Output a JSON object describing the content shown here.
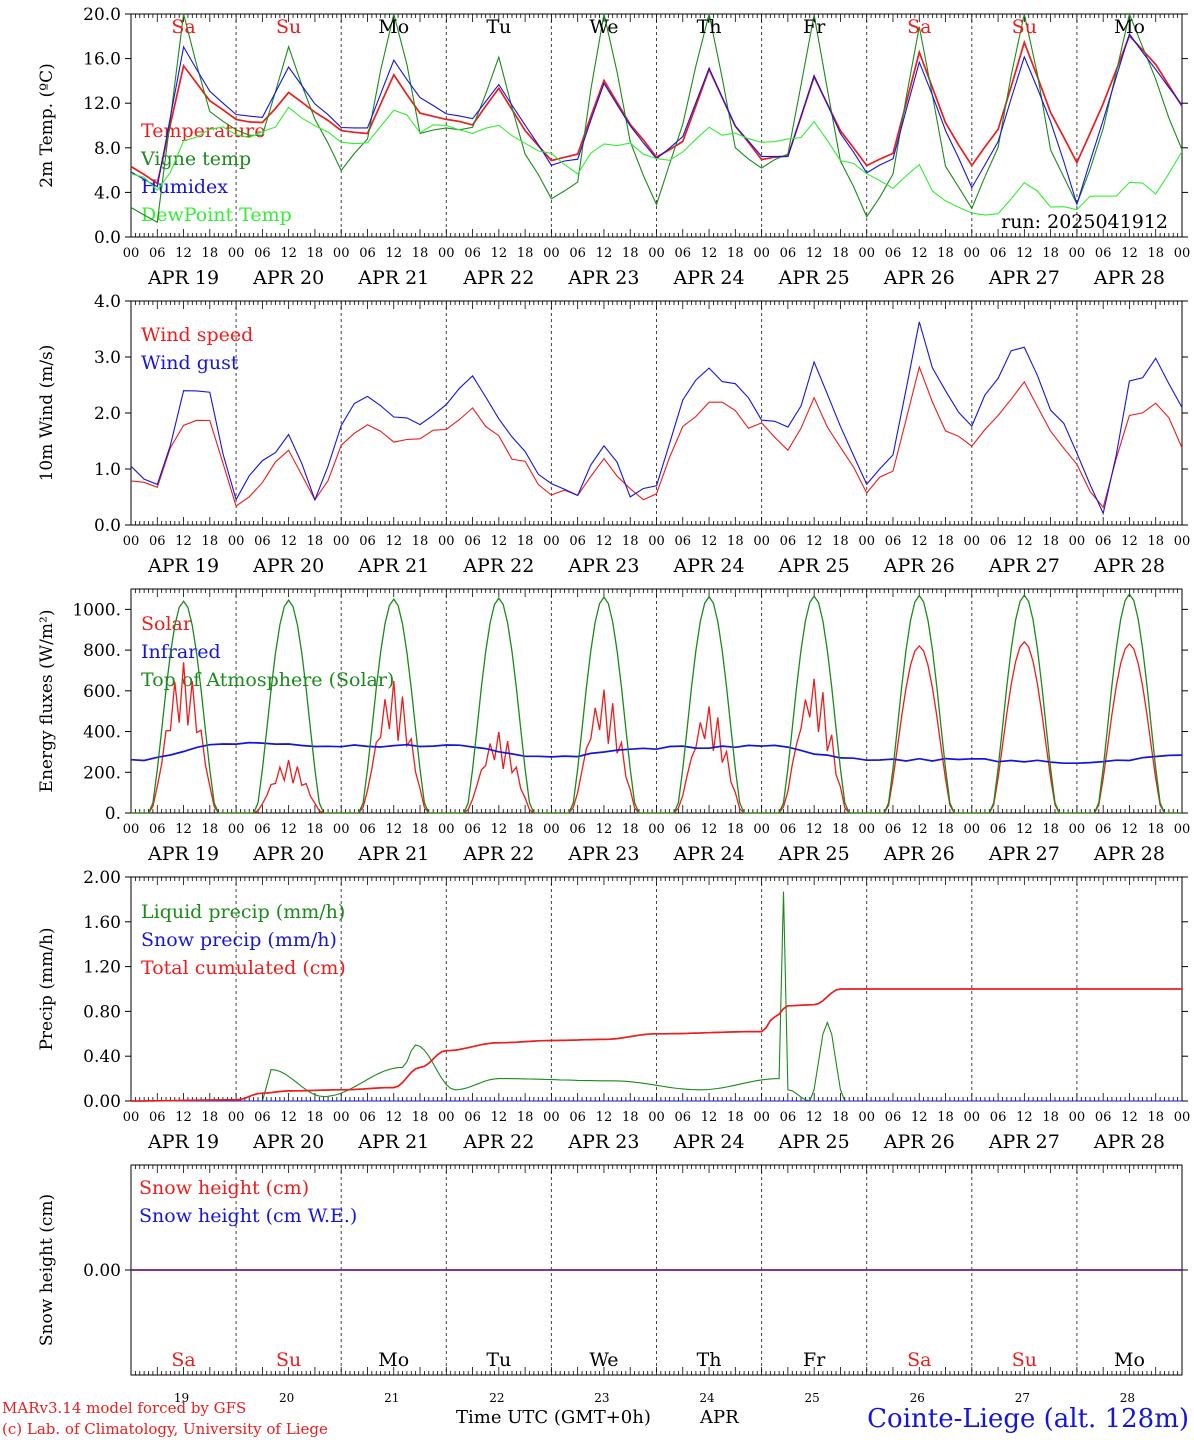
{
  "run_label": "run: 2025041912",
  "footer": {
    "model": "MARv3.14 model forced by GFS",
    "credit": "(c) Lab. of Climatology, University of Liege",
    "xaxis": "Time UTC (GMT+0h)",
    "month": "APR",
    "station": "Cointe-Liege (alt. 128m)"
  },
  "days": [
    {
      "date": "APR 19",
      "num": "19",
      "dow": "Sa",
      "weekend": true
    },
    {
      "date": "APR 20",
      "num": "20",
      "dow": "Su",
      "weekend": true
    },
    {
      "date": "APR 21",
      "num": "21",
      "dow": "Mo",
      "weekend": false
    },
    {
      "date": "APR 22",
      "num": "22",
      "dow": "Tu",
      "weekend": false
    },
    {
      "date": "APR 23",
      "num": "23",
      "dow": "We",
      "weekend": false
    },
    {
      "date": "APR 24",
      "num": "24",
      "dow": "Th",
      "weekend": false
    },
    {
      "date": "APR 25",
      "num": "25",
      "dow": "Fr",
      "weekend": false
    },
    {
      "date": "APR 26",
      "num": "26",
      "dow": "Sa",
      "weekend": true
    },
    {
      "date": "APR 27",
      "num": "27",
      "dow": "Su",
      "weekend": true
    },
    {
      "date": "APR 28",
      "num": "28",
      "dow": "Mo",
      "weekend": false
    }
  ],
  "hour_ticks": [
    "00",
    "06",
    "12",
    "18"
  ],
  "end_tick": "00",
  "colors": {
    "red": "#ee1c1c",
    "green": "#1a8a1a",
    "blue": "#1414e0",
    "lightgreen": "#33ee33",
    "weekend": "#ee1c1c"
  },
  "chart_data": [
    {
      "type": "line",
      "ylabel": "2m Temp. (ºC)",
      "ylim": [
        0,
        20
      ],
      "yticks": [
        "0.0",
        "4.0",
        "8.0",
        "12.0",
        "16.0",
        "20.0"
      ],
      "series": [
        {
          "name": "Temperature",
          "color": "red",
          "x": [
            0,
            6,
            12,
            18,
            24,
            30,
            36,
            42,
            48,
            54,
            60,
            66,
            72,
            78,
            84,
            90,
            96,
            102,
            108,
            114,
            120,
            126,
            132,
            138,
            144,
            150,
            156,
            162,
            168,
            174,
            180,
            186,
            192,
            198,
            204,
            210,
            216,
            222,
            228,
            234,
            240
          ],
          "values": [
            6.4,
            4.8,
            15.4,
            12.2,
            10.6,
            10.2,
            12.9,
            11.2,
            9.6,
            9.3,
            14.6,
            11.1,
            10.6,
            10.1,
            13.4,
            9.5,
            6.8,
            7.5,
            14.0,
            10.1,
            7.2,
            8.6,
            15.0,
            9.9,
            7.0,
            7.2,
            14.3,
            9.6,
            6.4,
            7.5,
            16.5,
            10.2,
            6.4,
            9.7,
            17.4,
            11.2,
            6.6,
            12.0,
            18.0,
            15.5,
            11.7
          ]
        },
        {
          "name": "Vigne temp",
          "color": "green",
          "x": [
            0,
            6,
            12,
            18,
            24,
            30,
            36,
            42,
            48,
            54,
            60,
            66,
            72,
            78,
            84,
            90,
            96,
            102,
            108,
            114,
            120,
            126,
            132,
            138,
            144,
            150,
            156,
            162,
            168,
            174,
            180,
            186,
            192,
            198,
            204,
            210,
            216,
            222,
            228,
            234,
            240
          ],
          "values": [
            2.8,
            1.2,
            20.0,
            11.0,
            9.4,
            9.2,
            17.0,
            10.5,
            6.0,
            9.0,
            21.0,
            9.5,
            9.8,
            9.6,
            16.0,
            7.6,
            3.5,
            5.0,
            21.0,
            8.5,
            3.0,
            10.0,
            21.0,
            8.0,
            6.4,
            7.5,
            20.0,
            7.0,
            2.0,
            5.5,
            19.0,
            6.2,
            2.5,
            8.0,
            21.0,
            8.0,
            3.0,
            9.5,
            20.0,
            14.0,
            7.6
          ]
        },
        {
          "name": "Humidex",
          "color": "blue",
          "x": [
            0,
            6,
            12,
            18,
            24,
            30,
            36,
            42,
            48,
            54,
            60,
            66,
            72,
            78,
            84,
            90,
            96,
            102,
            108,
            114,
            120,
            126,
            132,
            138,
            144,
            150,
            156,
            162,
            168,
            174,
            180,
            186,
            192,
            198,
            204,
            210,
            216,
            222,
            228,
            234,
            240
          ],
          "values": [
            5.9,
            4.5,
            17.0,
            13.0,
            11.0,
            10.8,
            15.2,
            12.0,
            9.8,
            9.8,
            15.8,
            12.5,
            11.0,
            10.6,
            13.6,
            10.0,
            6.5,
            7.0,
            13.8,
            10.0,
            7.0,
            9.0,
            15.2,
            10.0,
            7.2,
            7.2,
            14.5,
            9.3,
            5.8,
            7.0,
            15.7,
            9.6,
            4.5,
            8.5,
            16.2,
            10.4,
            3.0,
            10.5,
            18.2,
            15.0,
            11.8
          ]
        },
        {
          "name": "DewPoint Temp",
          "color": "lightgreen",
          "x": [
            0,
            6,
            12,
            18,
            24,
            30,
            36,
            42,
            48,
            54,
            60,
            66,
            72,
            78,
            84,
            90,
            96,
            102,
            108,
            114,
            120,
            126,
            132,
            138,
            144,
            150,
            156,
            162,
            168,
            174,
            180,
            186,
            192,
            198,
            204,
            210,
            216,
            222,
            228,
            234,
            240
          ],
          "values": [
            5.9,
            4.0,
            8.5,
            10.0,
            9.5,
            9.2,
            11.2,
            10.4,
            8.6,
            8.1,
            11.5,
            9.5,
            10.0,
            9.4,
            10.2,
            8.0,
            7.0,
            6.0,
            8.5,
            8.4,
            7.2,
            7.5,
            9.5,
            9.0,
            8.2,
            8.3,
            10.5,
            7.0,
            6.0,
            4.0,
            6.2,
            3.0,
            2.0,
            2.2,
            4.5,
            3.0,
            2.8,
            3.5,
            4.5,
            4.2,
            8.0
          ]
        }
      ]
    },
    {
      "type": "line",
      "ylabel": "10m Wind (m/s)",
      "ylim": [
        0,
        4
      ],
      "yticks": [
        "0.0",
        "1.0",
        "2.0",
        "3.0",
        "4.0"
      ],
      "series": [
        {
          "name": "Wind speed",
          "color": "red",
          "x": [
            0,
            6,
            12,
            18,
            24,
            30,
            36,
            42,
            48,
            54,
            60,
            66,
            72,
            78,
            84,
            90,
            96,
            102,
            108,
            114,
            120,
            126,
            132,
            138,
            144,
            150,
            156,
            162,
            168,
            174,
            180,
            186,
            192,
            198,
            204,
            210,
            216,
            222,
            228,
            234,
            240
          ],
          "values": [
            0.9,
            0.6,
            1.9,
            1.8,
            0.3,
            0.9,
            1.4,
            0.4,
            1.4,
            1.7,
            1.5,
            1.4,
            1.7,
            2.2,
            1.6,
            1.0,
            0.5,
            0.5,
            1.1,
            0.5,
            0.5,
            1.7,
            2.1,
            2.0,
            1.7,
            1.3,
            2.2,
            1.5,
            0.5,
            1.1,
            2.7,
            1.8,
            1.4,
            2.1,
            2.5,
            1.6,
            1.0,
            0.2,
            2.0,
            2.3,
            1.5
          ]
        },
        {
          "name": "Wind gust",
          "color": "blue",
          "x": [
            0,
            6,
            12,
            18,
            24,
            30,
            36,
            42,
            48,
            54,
            60,
            66,
            72,
            78,
            84,
            90,
            96,
            102,
            108,
            114,
            120,
            126,
            132,
            138,
            144,
            150,
            156,
            162,
            168,
            174,
            180,
            186,
            192,
            198,
            204,
            210,
            216,
            222,
            228,
            234,
            240
          ],
          "values": [
            1.1,
            0.7,
            2.4,
            2.3,
            0.4,
            1.1,
            1.6,
            0.5,
            1.8,
            2.3,
            2.0,
            1.7,
            2.2,
            2.8,
            2.0,
            1.2,
            0.6,
            0.6,
            1.4,
            0.6,
            0.6,
            2.1,
            2.8,
            2.5,
            2.0,
            1.6,
            2.8,
            1.9,
            0.6,
            1.4,
            3.5,
            2.3,
            1.8,
            2.7,
            3.3,
            2.1,
            1.3,
            0.2,
            2.5,
            3.0,
            2.0
          ]
        }
      ]
    },
    {
      "type": "line",
      "ylabel": "Energy fluxes (W/m²)",
      "ylim": [
        0,
        1100
      ],
      "yticks": [
        "0.",
        "200.",
        "400.",
        "600.",
        "800.",
        "1000."
      ],
      "series": [
        {
          "name": "Solar",
          "color": "red",
          "peaks": [
            740,
            260,
            650,
            400,
            610,
            530,
            670,
            820,
            840,
            830
          ],
          "note": "daily peak (W/m²)"
        },
        {
          "name": "Infrared",
          "color": "blue",
          "x": [
            0,
            24,
            48,
            72,
            96,
            120,
            144,
            168,
            192,
            216,
            240
          ],
          "values": [
            260,
            340,
            330,
            330,
            270,
            320,
            330,
            260,
            260,
            250,
            280
          ]
        },
        {
          "name": "Top of Atmosphere (Solar)",
          "color": "green",
          "peaks": [
            1040,
            1045,
            1050,
            1055,
            1060,
            1062,
            1065,
            1068,
            1070,
            1075
          ],
          "note": "daily peak (W/m²)"
        }
      ]
    },
    {
      "type": "line",
      "ylabel": "Precip (mm/h)",
      "ylim": [
        0,
        2
      ],
      "yticks": [
        "0.00",
        "0.40",
        "0.80",
        "1.20",
        "1.60",
        "2.00"
      ],
      "series": [
        {
          "name": "Liquid precip (mm/h)",
          "color": "green",
          "x": [
            0,
            30,
            32,
            44,
            62,
            65,
            74,
            84,
            110,
            130,
            148,
            149,
            150,
            155,
            159,
            163,
            240
          ],
          "values": [
            0,
            0,
            0.28,
            0.04,
            0.3,
            0.5,
            0.1,
            0.2,
            0.18,
            0.1,
            0.2,
            1.87,
            0.1,
            0,
            0.7,
            0,
            0
          ]
        },
        {
          "name": "Snow precip (mm/h)",
          "color": "blue",
          "x": [
            0,
            240
          ],
          "values": [
            0,
            0
          ]
        },
        {
          "name": "Total cumulated (cm)",
          "color": "red",
          "x": [
            0,
            24,
            30,
            36,
            48,
            60,
            66,
            72,
            84,
            96,
            108,
            120,
            144,
            147,
            150,
            156,
            162,
            240
          ],
          "values": [
            0,
            0.01,
            0.07,
            0.09,
            0.1,
            0.12,
            0.3,
            0.45,
            0.52,
            0.54,
            0.55,
            0.6,
            0.62,
            0.75,
            0.85,
            0.86,
            1.0,
            1.0
          ]
        }
      ]
    },
    {
      "type": "line",
      "ylabel": "Snow height (cm)",
      "ylim": [
        -1,
        1
      ],
      "yticks": [
        "0.00"
      ],
      "series": [
        {
          "name": "Snow height (cm)",
          "color": "red",
          "x": [
            0,
            240
          ],
          "values": [
            0,
            0
          ]
        },
        {
          "name": "Snow height (cm W.E.)",
          "color": "blue",
          "x": [
            0,
            240
          ],
          "values": [
            0,
            0
          ]
        }
      ]
    }
  ]
}
